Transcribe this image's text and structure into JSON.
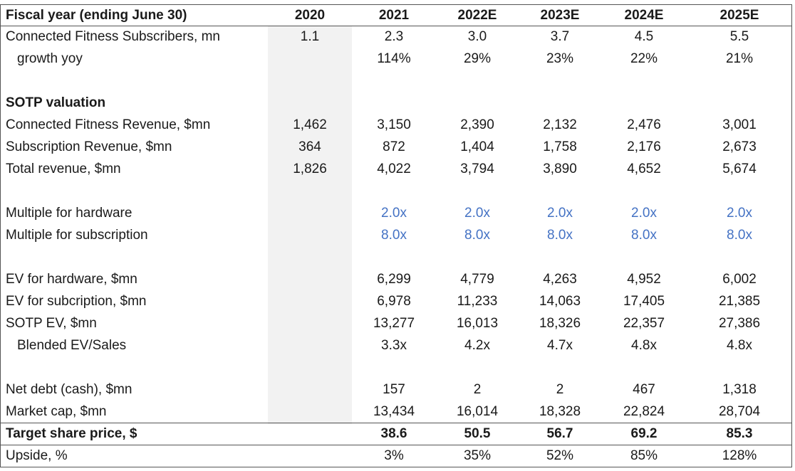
{
  "header": {
    "label": "Fiscal year (ending June 30)",
    "years": [
      "2020",
      "2021",
      "2022E",
      "2023E",
      "2024E",
      "2025E"
    ]
  },
  "rows": {
    "subscribers": {
      "label": "Connected Fitness Subscribers, mn",
      "values": [
        "1.1",
        "2.3",
        "3.0",
        "3.7",
        "4.5",
        "5.5"
      ]
    },
    "growth": {
      "label": "growth yoy",
      "values": [
        "",
        "114%",
        "29%",
        "23%",
        "22%",
        "21%"
      ]
    },
    "sotp_title": {
      "label": "SOTP valuation"
    },
    "cf_revenue": {
      "label": "Connected Fitness Revenue, $mn",
      "values": [
        "1,462",
        "3,150",
        "2,390",
        "2,132",
        "2,476",
        "3,001"
      ]
    },
    "sub_revenue": {
      "label": "Subscription Revenue, $mn",
      "values": [
        "364",
        "872",
        "1,404",
        "1,758",
        "2,176",
        "2,673"
      ]
    },
    "total_revenue": {
      "label": "Total revenue, $mn",
      "values": [
        "1,826",
        "4,022",
        "3,794",
        "3,890",
        "4,652",
        "5,674"
      ]
    },
    "mult_hw": {
      "label": "Multiple for hardware",
      "values": [
        "",
        "2.0x",
        "2.0x",
        "2.0x",
        "2.0x",
        "2.0x"
      ]
    },
    "mult_sub": {
      "label": "Multiple for subscription",
      "values": [
        "",
        "8.0x",
        "8.0x",
        "8.0x",
        "8.0x",
        "8.0x"
      ]
    },
    "ev_hw": {
      "label": "EV for hardware, $mn",
      "values": [
        "",
        "6,299",
        "4,779",
        "4,263",
        "4,952",
        "6,002"
      ]
    },
    "ev_sub": {
      "label": "EV for subcription, $mn",
      "values": [
        "",
        "6,978",
        "11,233",
        "14,063",
        "17,405",
        "21,385"
      ]
    },
    "sotp_ev": {
      "label": "SOTP EV, $mn",
      "values": [
        "",
        "13,277",
        "16,013",
        "18,326",
        "22,357",
        "27,386"
      ]
    },
    "blended": {
      "label": "Blended EV/Sales",
      "values": [
        "",
        "3.3x",
        "4.2x",
        "4.7x",
        "4.8x",
        "4.8x"
      ]
    },
    "net_debt": {
      "label": "Net debt (cash), $mn",
      "values": [
        "",
        "157",
        "2",
        "2",
        "467",
        "1,318"
      ]
    },
    "market_cap": {
      "label": "Market cap, $mn",
      "values": [
        "",
        "13,434",
        "16,014",
        "18,328",
        "22,824",
        "28,704"
      ]
    },
    "target_price": {
      "label": "Target share price, $",
      "values": [
        "",
        "38.6",
        "50.5",
        "56.7",
        "69.2",
        "85.3"
      ]
    },
    "upside": {
      "label": "Upside, %",
      "values": [
        "",
        "3%",
        "35%",
        "52%",
        "85%",
        "128%"
      ]
    }
  },
  "colors": {
    "input_blue": "#4472c4",
    "shade_2021": "#f2f2f2",
    "border": "#555555"
  }
}
